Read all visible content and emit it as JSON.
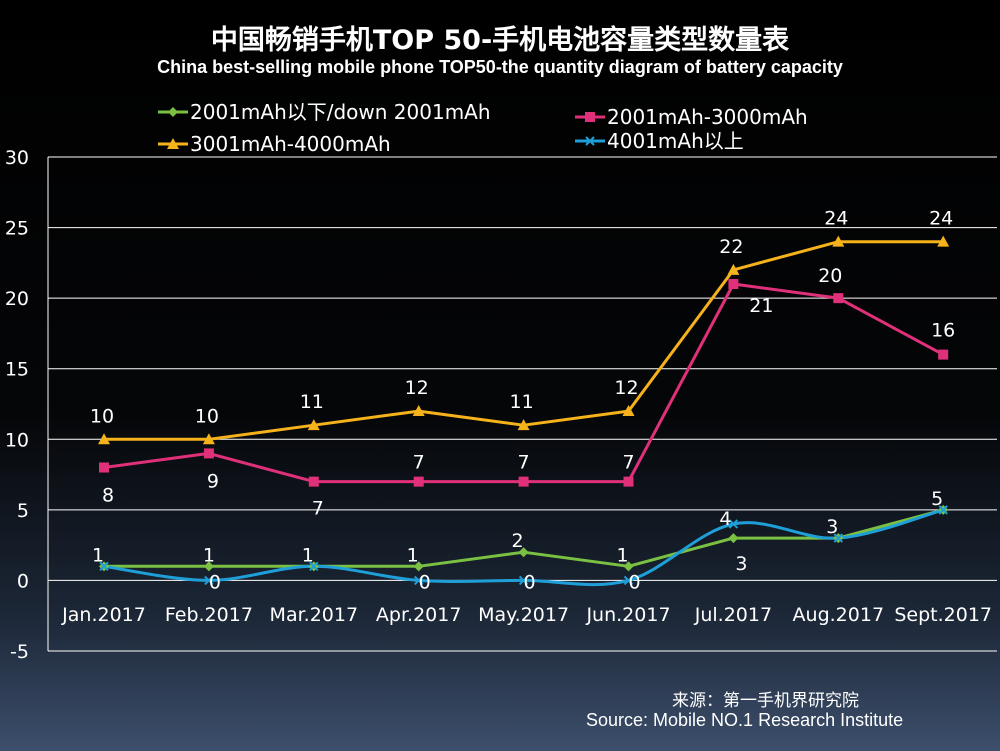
{
  "title": "中国畅销手机TOP 50-手机电池容量类型数量表",
  "subtitle": "China best-selling mobile phone TOP50-the quantity diagram of battery capacity",
  "source_cn": "来源：第一手机界研究院",
  "source_en": "Source: Mobile NO.1 Research Institute",
  "chart_data": {
    "type": "line",
    "categories": [
      "Jan.2017",
      "Feb.2017",
      "Mar.2017",
      "Apr.2017",
      "May.2017",
      "Jun.2017",
      "Jul.2017",
      "Aug.2017",
      "Sept.2017"
    ],
    "ylim": [
      -5,
      30
    ],
    "yticks": [
      -5,
      0,
      5,
      10,
      15,
      20,
      25,
      30
    ],
    "grid": true,
    "legend_placement": "top",
    "series": [
      {
        "name": "2001mAh以下/down 2001mAh",
        "color": "#7ac143",
        "marker": "diamond",
        "smooth": false,
        "values": [
          1,
          1,
          1,
          1,
          2,
          1,
          3,
          3,
          5
        ]
      },
      {
        "name": "2001mAh-3000mAh",
        "color": "#e0307a",
        "marker": "square",
        "smooth": false,
        "values": [
          8,
          9,
          7,
          7,
          7,
          7,
          21,
          20,
          16
        ]
      },
      {
        "name": "3001mAh-4000mAh",
        "color": "#f6b21a",
        "marker": "triangle",
        "smooth": false,
        "values": [
          10,
          10,
          11,
          12,
          11,
          12,
          22,
          24,
          24
        ]
      },
      {
        "name": "4001mAh以上",
        "color": "#1f9fd8",
        "marker": "x",
        "smooth": true,
        "values": [
          1,
          0,
          1,
          0,
          0,
          0,
          4,
          3,
          5
        ]
      }
    ]
  }
}
